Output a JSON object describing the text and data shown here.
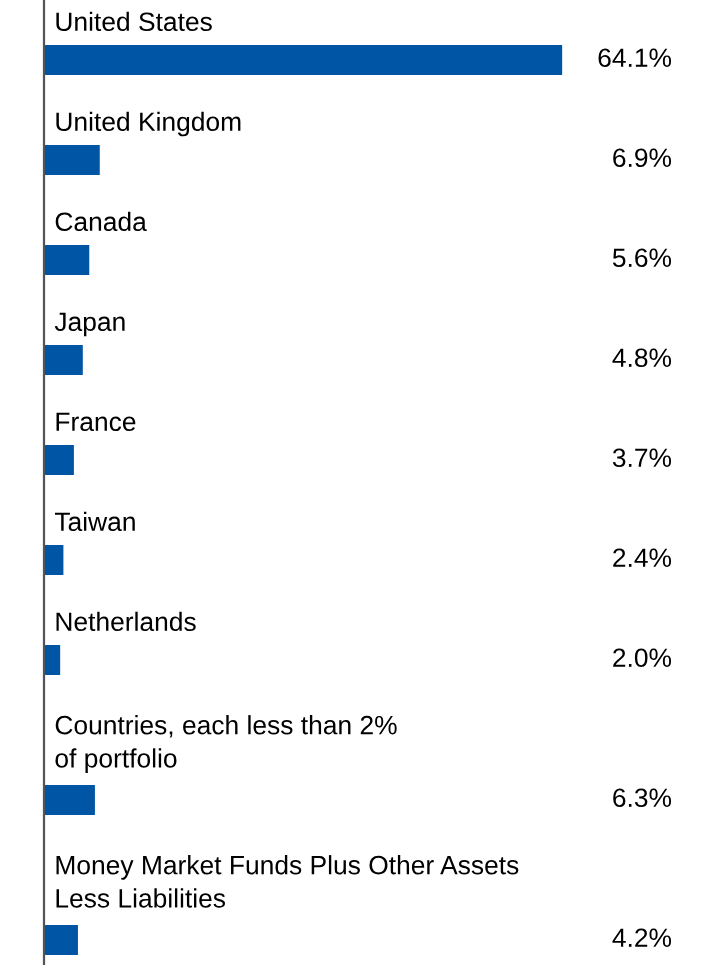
{
  "chart_data": {
    "type": "bar",
    "orientation": "horizontal",
    "categories": [
      "United States",
      "United Kingdom",
      "Canada",
      "Japan",
      "France",
      "Taiwan",
      "Netherlands",
      "Countries, each less than 2%\nof portfolio",
      "Money Market Funds Plus Other Assets\nLess Liabilities"
    ],
    "values": [
      64.1,
      6.9,
      5.6,
      4.8,
      3.7,
      2.4,
      2.0,
      6.3,
      4.2
    ],
    "value_labels": [
      "64.1%",
      "6.9%",
      "5.6%",
      "4.8%",
      "3.7%",
      "2.4%",
      "2.0%",
      "6.3%",
      "4.2%"
    ],
    "color": "#0055a5"
  }
}
